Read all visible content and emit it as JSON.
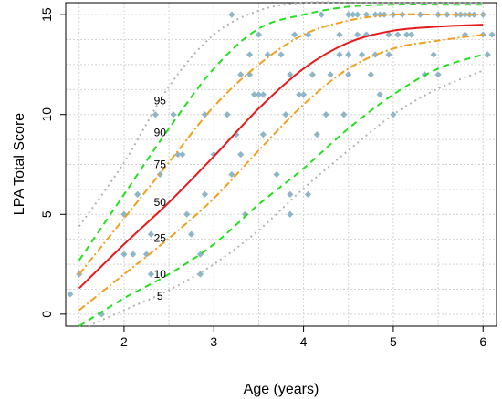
{
  "chart_data": {
    "type": "scatter",
    "title": "",
    "xlabel": "Age (years)",
    "ylabel": "LPA Total Score",
    "xlim": [
      1.35,
      6.15
    ],
    "ylim": [
      -0.6,
      15.6
    ],
    "xticks": [
      "2",
      "3",
      "4",
      "5",
      "6"
    ],
    "yticks": [
      "0",
      "5",
      "10",
      "15"
    ],
    "grid": true,
    "colors": {
      "points": "#8fb6c7",
      "p50": "#e8191b",
      "p25_p75": "#f0a01e",
      "p10_p90": "#22e01f",
      "p5_p95": "#b4b4b4",
      "grid": "#d3d3d3"
    },
    "points": [
      [
        1.4,
        1
      ],
      [
        1.5,
        2
      ],
      [
        1.75,
        0
      ],
      [
        2.0,
        5
      ],
      [
        2.0,
        3
      ],
      [
        2.1,
        3
      ],
      [
        2.15,
        6
      ],
      [
        2.25,
        3
      ],
      [
        2.3,
        2
      ],
      [
        2.3,
        4
      ],
      [
        2.35,
        10
      ],
      [
        2.4,
        7
      ],
      [
        2.55,
        10
      ],
      [
        2.6,
        8
      ],
      [
        2.65,
        8
      ],
      [
        2.7,
        5
      ],
      [
        2.75,
        4
      ],
      [
        2.85,
        3
      ],
      [
        2.85,
        2
      ],
      [
        2.9,
        6
      ],
      [
        2.9,
        10
      ],
      [
        3.0,
        8
      ],
      [
        3.15,
        10
      ],
      [
        3.2,
        15
      ],
      [
        3.2,
        7
      ],
      [
        3.25,
        9
      ],
      [
        3.3,
        8
      ],
      [
        3.3,
        12
      ],
      [
        3.35,
        5
      ],
      [
        3.4,
        13
      ],
      [
        3.4,
        12
      ],
      [
        3.45,
        11
      ],
      [
        3.5,
        11
      ],
      [
        3.5,
        14
      ],
      [
        3.55,
        11
      ],
      [
        3.55,
        9
      ],
      [
        3.6,
        13
      ],
      [
        3.7,
        7
      ],
      [
        3.75,
        13
      ],
      [
        3.8,
        10
      ],
      [
        3.85,
        12
      ],
      [
        3.85,
        6
      ],
      [
        3.85,
        5
      ],
      [
        3.9,
        14
      ],
      [
        3.95,
        11
      ],
      [
        4.0,
        11
      ],
      [
        4.05,
        14
      ],
      [
        4.05,
        6
      ],
      [
        4.1,
        12
      ],
      [
        4.15,
        9
      ],
      [
        4.2,
        15
      ],
      [
        4.25,
        10
      ],
      [
        4.3,
        12
      ],
      [
        4.4,
        14
      ],
      [
        4.4,
        13
      ],
      [
        4.45,
        10
      ],
      [
        4.5,
        15
      ],
      [
        4.5,
        13
      ],
      [
        4.5,
        12
      ],
      [
        4.55,
        15
      ],
      [
        4.6,
        15
      ],
      [
        4.6,
        14
      ],
      [
        4.65,
        13
      ],
      [
        4.7,
        15
      ],
      [
        4.7,
        14
      ],
      [
        4.75,
        12
      ],
      [
        4.8,
        15
      ],
      [
        4.8,
        13
      ],
      [
        4.85,
        11
      ],
      [
        4.85,
        15
      ],
      [
        4.9,
        15
      ],
      [
        4.95,
        14
      ],
      [
        4.95,
        13
      ],
      [
        5.0,
        15
      ],
      [
        5.0,
        10
      ],
      [
        5.05,
        14
      ],
      [
        5.1,
        15
      ],
      [
        5.15,
        14
      ],
      [
        5.2,
        14
      ],
      [
        5.3,
        15
      ],
      [
        5.35,
        12
      ],
      [
        5.45,
        13
      ],
      [
        5.5,
        15
      ],
      [
        5.5,
        12
      ],
      [
        5.6,
        15
      ],
      [
        5.7,
        15
      ],
      [
        5.75,
        15
      ],
      [
        5.8,
        15
      ],
      [
        5.8,
        14
      ],
      [
        5.85,
        15
      ],
      [
        5.9,
        15
      ],
      [
        6.0,
        15
      ],
      [
        6.0,
        14
      ],
      [
        6.05,
        13
      ],
      [
        6.1,
        14
      ]
    ],
    "series": [
      {
        "name": "5",
        "x": [
          1.6,
          2.0,
          2.5,
          3.0,
          3.5,
          4.0,
          4.5,
          5.0,
          5.5,
          6.0
        ],
        "values": [
          -0.6,
          0.2,
          1.2,
          2.5,
          4.2,
          6.3,
          8.2,
          10.0,
          11.3,
          12.2
        ]
      },
      {
        "name": "10",
        "x": [
          1.5,
          2.0,
          2.5,
          3.0,
          3.5,
          4.0,
          4.5,
          5.0,
          5.5,
          6.0
        ],
        "values": [
          -0.6,
          0.8,
          2.0,
          3.5,
          5.5,
          7.3,
          9.3,
          11.0,
          12.3,
          13.0
        ]
      },
      {
        "name": "25",
        "x": [
          1.5,
          2.0,
          2.5,
          3.0,
          3.5,
          4.0,
          4.5,
          5.0,
          5.5,
          6.0
        ],
        "values": [
          0.2,
          2.0,
          3.8,
          5.8,
          8.2,
          10.5,
          12.3,
          13.3,
          13.7,
          14.0
        ]
      },
      {
        "name": "50",
        "x": [
          1.5,
          2.0,
          2.5,
          3.0,
          3.5,
          4.0,
          4.5,
          5.0,
          5.5,
          6.0
        ],
        "values": [
          1.3,
          3.5,
          5.6,
          7.9,
          10.3,
          12.3,
          13.6,
          14.2,
          14.4,
          14.5
        ]
      },
      {
        "name": "75",
        "x": [
          1.5,
          2.0,
          2.5,
          3.0,
          3.5,
          4.0,
          4.5,
          5.0,
          5.5,
          6.0
        ],
        "values": [
          2.0,
          4.8,
          7.6,
          10.4,
          12.5,
          14.0,
          14.7,
          15.0,
          15.0,
          15.0
        ]
      },
      {
        "name": "90",
        "x": [
          1.5,
          2.0,
          2.5,
          3.0,
          3.5,
          4.0,
          4.5,
          5.0,
          5.5,
          6.0
        ],
        "values": [
          2.7,
          6.0,
          9.3,
          12.3,
          14.3,
          15.0,
          15.4,
          15.5,
          15.5,
          15.5
        ]
      },
      {
        "name": "95",
        "x": [
          1.5,
          2.0,
          2.5,
          3.0,
          3.5,
          4.0,
          4.5,
          5.0,
          5.5,
          6.0
        ],
        "values": [
          4.4,
          7.6,
          11.4,
          14.0,
          15.2,
          15.6,
          15.6,
          15.6,
          15.6,
          15.6
        ]
      }
    ],
    "percentile_labels": [
      {
        "text": "95",
        "x": 2.4,
        "y": 10.7
      },
      {
        "text": "90",
        "x": 2.4,
        "y": 9.1
      },
      {
        "text": "75",
        "x": 2.4,
        "y": 7.5
      },
      {
        "text": "50",
        "x": 2.4,
        "y": 5.6
      },
      {
        "text": "25",
        "x": 2.4,
        "y": 3.8
      },
      {
        "text": "10",
        "x": 2.4,
        "y": 2.0
      },
      {
        "text": "5",
        "x": 2.4,
        "y": 0.9
      }
    ]
  }
}
